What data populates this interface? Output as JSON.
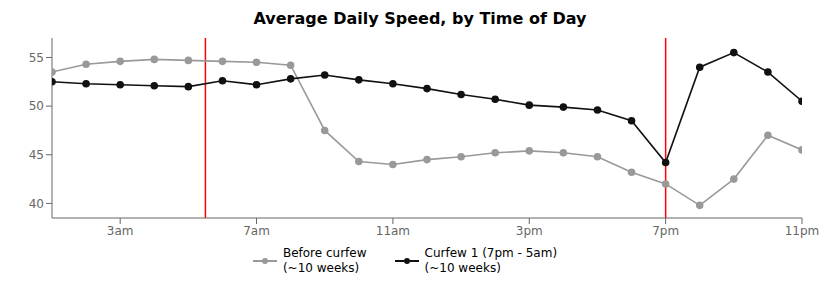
{
  "chart_data": {
    "type": "line",
    "title": "Average Daily Speed, by Time of Day",
    "x": [
      1,
      2,
      3,
      4,
      5,
      6,
      7,
      8,
      9,
      10,
      11,
      12,
      13,
      14,
      15,
      16,
      17,
      18,
      19,
      20,
      21,
      22,
      23
    ],
    "xlim": [
      1,
      23
    ],
    "xticks": [
      {
        "value": 3,
        "label": "3am"
      },
      {
        "value": 7,
        "label": "7am"
      },
      {
        "value": 11,
        "label": "11am"
      },
      {
        "value": 15,
        "label": "3pm"
      },
      {
        "value": 19,
        "label": "7pm"
      },
      {
        "value": 23,
        "label": "11pm"
      }
    ],
    "ylim": [
      38.5,
      57
    ],
    "yticks": [
      40,
      45,
      50,
      55
    ],
    "grid": false,
    "legend": "bottom",
    "marker": "circle",
    "series": [
      {
        "name": "Before curfew\n(~10 weeks)",
        "color": "#999999",
        "values": [
          53.5,
          54.3,
          54.6,
          54.8,
          54.7,
          54.6,
          54.5,
          54.2,
          47.5,
          44.3,
          44.0,
          44.5,
          44.8,
          45.2,
          45.4,
          45.2,
          44.8,
          43.2,
          42.0,
          39.8,
          42.5,
          47.0,
          45.5
        ]
      },
      {
        "name": "Curfew 1 (7pm - 5am)\n(~10 weeks)",
        "color": "#111111",
        "values": [
          52.5,
          52.3,
          52.2,
          52.1,
          52.0,
          52.6,
          52.2,
          52.8,
          53.2,
          52.7,
          52.3,
          51.8,
          51.2,
          50.7,
          50.1,
          49.9,
          49.6,
          48.5,
          44.2,
          54.0,
          55.5,
          53.5,
          50.5
        ]
      }
    ],
    "vlines": {
      "x": [
        5.5,
        19
      ],
      "color": "red"
    }
  }
}
